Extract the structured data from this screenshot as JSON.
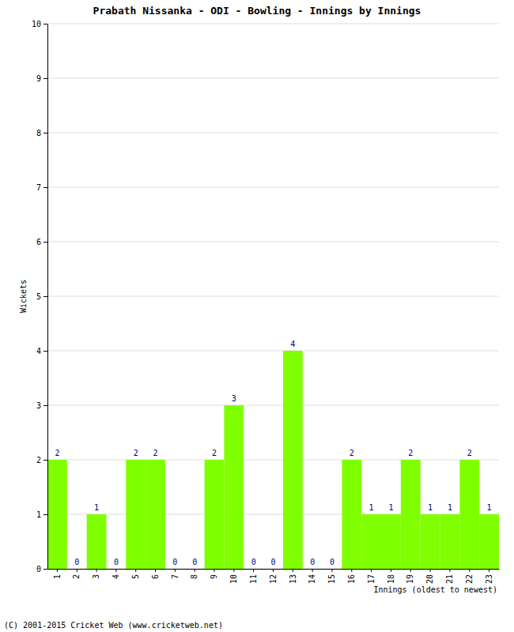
{
  "chart_data": {
    "type": "bar",
    "title": "Prabath Nissanka - ODI - Bowling - Innings by Innings",
    "x_label": "Innings (oldest to newest)",
    "y_label": "Wickets",
    "categories": [
      "1",
      "2",
      "3",
      "4",
      "5",
      "6",
      "7",
      "8",
      "9",
      "10",
      "11",
      "12",
      "13",
      "14",
      "15",
      "16",
      "17",
      "18",
      "19",
      "20",
      "21",
      "22",
      "23"
    ],
    "values": [
      2,
      0,
      1,
      0,
      2,
      2,
      0,
      0,
      2,
      3,
      0,
      0,
      4,
      0,
      0,
      2,
      1,
      1,
      2,
      1,
      1,
      2,
      1
    ],
    "color": "#80ff00",
    "ylim": [
      0,
      10
    ],
    "yticks": [
      0,
      1,
      2,
      3,
      4,
      5,
      6,
      7,
      8,
      9,
      10
    ],
    "grid": true,
    "data_labels": true,
    "annotations": [
      "(C) 2001-2015 Cricket Web (www.cricketweb.net)"
    ]
  }
}
